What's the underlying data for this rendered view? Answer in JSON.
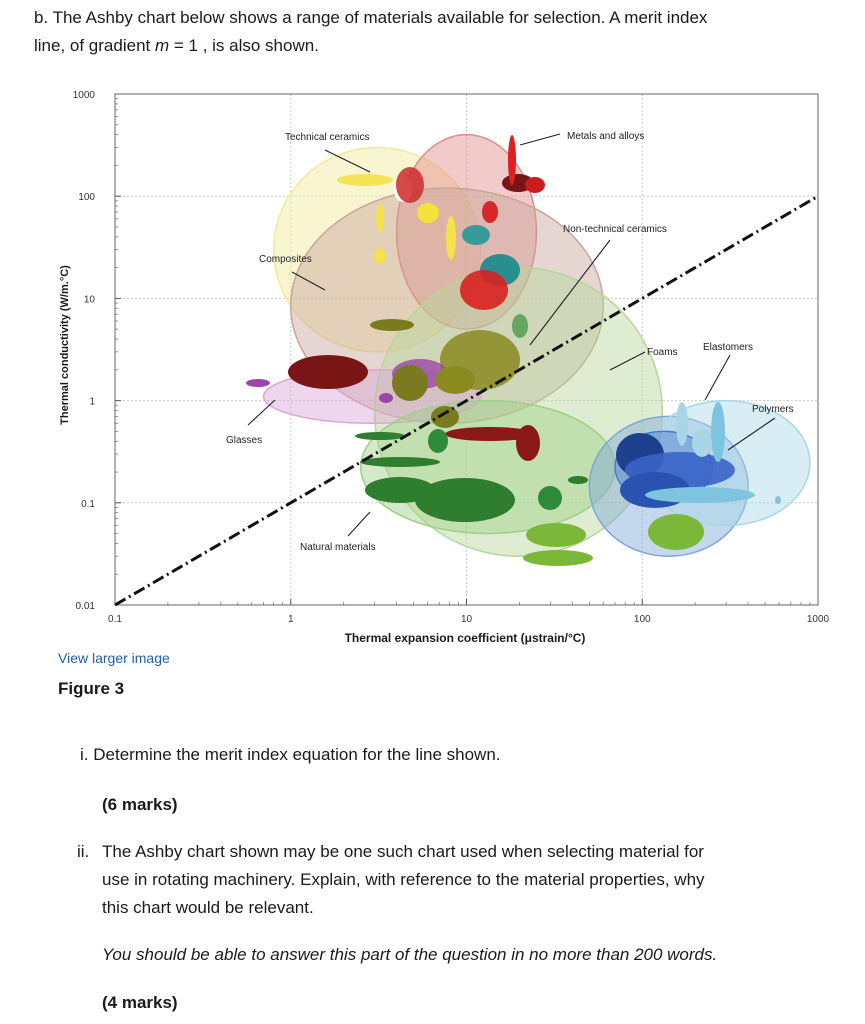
{
  "question_b": {
    "intro_line1": "b. The Ashby chart below shows a range of materials available for selection. A merit index",
    "intro_line2_before": "line, of gradient ",
    "intro_line2_var": "m",
    "intro_line2_after": " = 1 , is also shown."
  },
  "figure": {
    "link_text": "View larger image",
    "caption": "Figure 3"
  },
  "chart_data": {
    "type": "scatter",
    "subtype": "ashby-bubble-chart",
    "xlabel": "Thermal expansion coefficient (μstrain/°C)",
    "ylabel": "Thermal conductivity (W/m.°C)",
    "x_scale": "log",
    "y_scale": "log",
    "xlim": [
      0.1,
      1000
    ],
    "ylim": [
      0.01,
      1000
    ],
    "x_ticks": [
      "0.1",
      "1",
      "10",
      "100",
      "1000"
    ],
    "y_ticks": [
      "0.01",
      "0.1",
      "1",
      "10",
      "100",
      "1000"
    ],
    "grid": true,
    "merit_line": {
      "gradient": 1,
      "points": [
        [
          0.1,
          0.01
        ],
        [
          1000,
          100
        ]
      ]
    },
    "families": [
      {
        "label": "Technical ceramics",
        "color": "#f3e99a",
        "region_x": [
          0.8,
          12
        ],
        "region_y": [
          3,
          300
        ]
      },
      {
        "label": "Metals and alloys",
        "color": "#e08a8a",
        "region_x": [
          4,
          25
        ],
        "region_y": [
          5,
          400
        ]
      },
      {
        "label": "Composites",
        "color": "#c8a59a",
        "region_x": [
          1,
          60
        ],
        "region_y": [
          0.6,
          120
        ]
      },
      {
        "label": "Non-technical ceramics",
        "color": "#b6d69a",
        "region_x": [
          3,
          130
        ],
        "region_y": [
          0.03,
          20
        ]
      },
      {
        "label": "Glasses",
        "color": "#d9a6d6",
        "region_x": [
          0.7,
          12
        ],
        "region_y": [
          0.6,
          2
        ]
      },
      {
        "label": "Natural materials",
        "color": "#9fcf88",
        "region_x": [
          2.5,
          70
        ],
        "region_y": [
          0.05,
          1
        ]
      },
      {
        "label": "Foams",
        "color": "#7da6d8",
        "region_x": [
          50,
          400
        ],
        "region_y": [
          0.03,
          0.7
        ]
      },
      {
        "label": "Elastomers",
        "color": "#a9d6e6",
        "region_x": [
          100,
          900
        ],
        "region_y": [
          0.06,
          1
        ]
      },
      {
        "label": "Polymers",
        "color": "#4a7bd0",
        "region_x": [
          70,
          250
        ],
        "region_y": [
          0.1,
          0.5
        ]
      }
    ]
  },
  "questions": [
    {
      "number": "i.",
      "text": "Determine the merit index equation for the line shown.",
      "marks": "(6 marks)"
    },
    {
      "number": "ii.",
      "text_line1": "The Ashby chart shown may be one such chart used when selecting material for",
      "text_line2": "use in rotating machinery. Explain, with reference to the material properties, why",
      "text_line3": "this chart would be relevant.",
      "note": "You should be able to answer this part of the question in no more than 200 words.",
      "marks": "(4 marks)"
    }
  ],
  "colors": {
    "link": "#1f5fa8",
    "text": "#1a1a1a",
    "grid": "#bfbfbf"
  }
}
